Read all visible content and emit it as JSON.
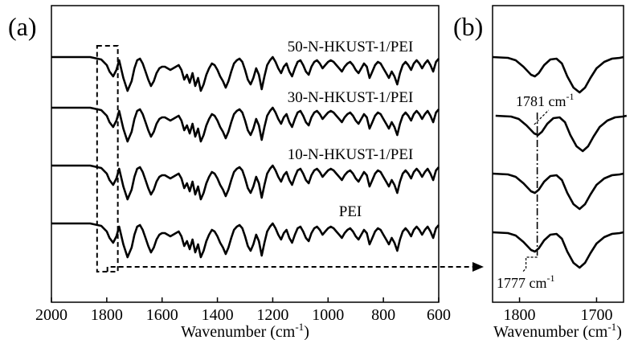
{
  "chart_data": [
    {
      "type": "line",
      "panel_label": "(a)",
      "title": "",
      "xlabel": "Wavenumber (cm-1)",
      "xlabel_main": "Wavenumber (cm",
      "xlabel_sup": "-1",
      "xlabel_end": ")",
      "ylabel": "",
      "xlim": [
        2000,
        600
      ],
      "xticks": [
        2000,
        1800,
        1600,
        1400,
        1200,
        1000,
        800,
        600
      ],
      "grid": false,
      "highlight_box": [
        1835,
        1760
      ],
      "series": [
        {
          "name": "50-N-HKUST-1/PEI",
          "label": "50-N-HKUST-1/PEI"
        },
        {
          "name": "30-N-HKUST-1/PEI",
          "label": "30-N-HKUST-1/PEI"
        },
        {
          "name": "10-N-HKUST-1/PEI",
          "label": "10-N-HKUST-1/PEI"
        },
        {
          "name": "PEI",
          "label": "PEI"
        }
      ],
      "transmittance_profile": {
        "x": [
          2000,
          1860,
          1820,
          1800,
          1790,
          1777,
          1765,
          1755,
          1740,
          1725,
          1710,
          1700,
          1690,
          1680,
          1670,
          1660,
          1650,
          1640,
          1630,
          1620,
          1610,
          1600,
          1590,
          1580,
          1570,
          1560,
          1550,
          1540,
          1530,
          1520,
          1510,
          1500,
          1490,
          1480,
          1470,
          1460,
          1450,
          1440,
          1430,
          1420,
          1410,
          1400,
          1390,
          1380,
          1370,
          1360,
          1350,
          1340,
          1330,
          1320,
          1310,
          1300,
          1290,
          1280,
          1270,
          1260,
          1250,
          1240,
          1230,
          1220,
          1210,
          1200,
          1190,
          1180,
          1170,
          1160,
          1150,
          1140,
          1130,
          1120,
          1110,
          1100,
          1090,
          1080,
          1070,
          1060,
          1050,
          1040,
          1030,
          1020,
          1010,
          1000,
          990,
          980,
          970,
          960,
          950,
          940,
          930,
          920,
          910,
          900,
          890,
          880,
          870,
          860,
          850,
          840,
          830,
          820,
          810,
          800,
          790,
          780,
          770,
          760,
          750,
          740,
          730,
          720,
          710,
          700,
          690,
          680,
          670,
          660,
          650,
          640,
          630,
          620,
          610,
          600
        ],
        "y": [
          0,
          0,
          -3,
          -10,
          -18,
          -24,
          -16,
          -4,
          -26,
          -42,
          -30,
          -14,
          -4,
          -2,
          -8,
          -18,
          -28,
          -36,
          -30,
          -20,
          -14,
          -12,
          -12,
          -14,
          -16,
          -14,
          -12,
          -10,
          -16,
          -28,
          -22,
          -32,
          -20,
          -36,
          -26,
          -42,
          -34,
          -22,
          -14,
          -8,
          -10,
          -16,
          -24,
          -30,
          -38,
          -30,
          -18,
          -8,
          -4,
          -2,
          -6,
          -16,
          -28,
          -34,
          -26,
          -14,
          -22,
          -40,
          -24,
          -10,
          -4,
          0,
          -6,
          -14,
          -20,
          -12,
          -8,
          -18,
          -24,
          -14,
          -6,
          -4,
          -10,
          -18,
          -22,
          -12,
          -6,
          -4,
          -8,
          -14,
          -10,
          -6,
          -4,
          -6,
          -10,
          -14,
          -18,
          -12,
          -8,
          -6,
          -10,
          -16,
          -20,
          -14,
          -8,
          -12,
          -26,
          -18,
          -10,
          -6,
          -8,
          -14,
          -20,
          -26,
          -18,
          -24,
          -34,
          -20,
          -10,
          -6,
          -10,
          -16,
          -8,
          -4,
          -8,
          -14,
          -8,
          -4,
          -10,
          -18,
          -6,
          -2
        ]
      }
    },
    {
      "type": "line",
      "panel_label": "(b)",
      "title": "",
      "xlabel": "Wavenumber (cm-1)",
      "xlabel_main": "Wavenumber (cm",
      "xlabel_sup": "-1",
      "xlabel_end": ")",
      "ylabel": "",
      "xlim": [
        1835,
        1665
      ],
      "xticks": [
        1800,
        1700
      ],
      "grid": false,
      "annotations": [
        {
          "text": "1781 cm",
          "sup": "-1",
          "x": 1781,
          "series": "30-N-HKUST-1/PEI"
        },
        {
          "text": "1777 cm",
          "sup": "-1",
          "x": 1777,
          "series": "PEI"
        }
      ],
      "zoom_profile": {
        "x": [
          1835,
          1815,
          1805,
          1795,
          1785,
          1780,
          1775,
          1768,
          1760,
          1752,
          1745,
          1738,
          1730,
          1722,
          1715,
          1708,
          1700,
          1690,
          1680,
          1670,
          1665
        ],
        "y": [
          0,
          -1,
          -4,
          -12,
          -22,
          -24,
          -20,
          -10,
          -3,
          -2,
          -8,
          -24,
          -38,
          -44,
          -38,
          -26,
          -14,
          -6,
          -2,
          -1,
          0
        ]
      }
    }
  ]
}
